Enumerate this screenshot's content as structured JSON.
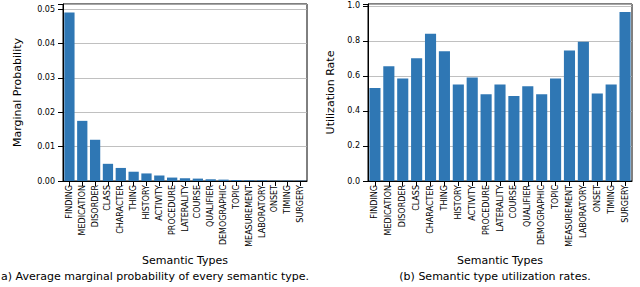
{
  "chart_data": [
    {
      "type": "bar",
      "title": "a) Average marginal probability of every semantic type.",
      "x_label": "Semantic Types",
      "y_label": "Marginal Probability",
      "categories": [
        "FINDING",
        "MEDICATION",
        "DISORDER",
        "CLASS",
        "CHARACTER",
        "THING",
        "HISTORY",
        "ACTIVITY",
        "PROCEDURE",
        "LATERALITY",
        "COURSE",
        "QUALIFIER",
        "DEMOGRAPHIC",
        "TOPIC",
        "MEASUREMENT",
        "LABORATORY",
        "ONSET",
        "TIMING",
        "SURGERY"
      ],
      "values": [
        0.049,
        0.0175,
        0.012,
        0.005,
        0.0038,
        0.0027,
        0.0022,
        0.0016,
        0.001,
        0.0008,
        0.0007,
        0.0005,
        0.0004,
        0.0003,
        0.0002,
        0.0002,
        0.0001,
        0.0001,
        0.0001
      ],
      "color": "#2f77b4",
      "ylim": [
        0,
        0.0515
      ],
      "yticks": [
        {
          "value": 0,
          "label": "0.00"
        },
        {
          "value": 0.01,
          "label": "0.01"
        },
        {
          "value": 0.02,
          "label": "0.02"
        },
        {
          "value": 0.03,
          "label": "0.03"
        },
        {
          "value": 0.04,
          "label": "0.04"
        },
        {
          "value": 0.05,
          "label": "0.05"
        }
      ],
      "grid": true
    },
    {
      "type": "bar",
      "title": "(b) Semantic type utilization rates.",
      "x_label": "Semantic Types",
      "y_label": "Utilization Rate",
      "categories": [
        "FINDING",
        "MEDICATION",
        "DISORDER",
        "CLASS",
        "CHARACTER",
        "THING",
        "HISTORY",
        "ACTIVITY",
        "PROCEDURE",
        "LATERALITY",
        "COURSE",
        "QUALIFIER",
        "DEMOGRAPHIC",
        "TOPIC",
        "MEASUREMENT",
        "LABORATORY",
        "ONSET",
        "TIMING",
        "SURGERY"
      ],
      "values": [
        0.53,
        0.655,
        0.585,
        0.7,
        0.84,
        0.74,
        0.55,
        0.59,
        0.495,
        0.55,
        0.485,
        0.54,
        0.495,
        0.585,
        0.745,
        0.795,
        0.5,
        0.55,
        0.965
      ],
      "color": "#2f77b4",
      "ylim": [
        0,
        1.01
      ],
      "yticks": [
        {
          "value": 0,
          "label": "0.0"
        },
        {
          "value": 0.2,
          "label": "0.2"
        },
        {
          "value": 0.4,
          "label": "0.4"
        },
        {
          "value": 0.6,
          "label": "0.6"
        },
        {
          "value": 0.8,
          "label": "0.8"
        },
        {
          "value": 1,
          "label": "1.0"
        }
      ],
      "grid": true
    }
  ]
}
